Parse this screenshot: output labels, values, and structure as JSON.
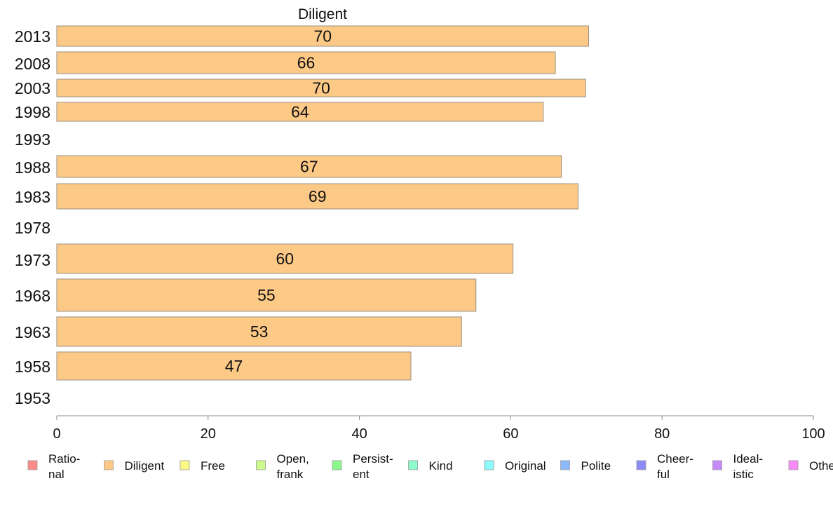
{
  "chart_data": {
    "type": "bar",
    "orientation": "horizontal",
    "title": "Diligent",
    "xlim": [
      0,
      100
    ],
    "xticks": [
      0,
      20,
      40,
      60,
      80,
      100
    ],
    "bar_color": "#fdc986",
    "bar_edge_color": "#9a8f80",
    "categories": [
      "2013",
      "2008",
      "2003",
      "1998",
      "1993",
      "1988",
      "1983",
      "1978",
      "1973",
      "1968",
      "1963",
      "1958",
      "1953"
    ],
    "values": [
      70.3,
      65.9,
      69.9,
      64.3,
      null,
      66.7,
      68.9,
      null,
      60.3,
      55.4,
      53.5,
      46.8,
      null
    ],
    "value_labels": [
      "70",
      "66",
      "70",
      "64",
      "",
      "67",
      "69",
      "",
      "60",
      "55",
      "53",
      "47",
      ""
    ],
    "legend": {
      "placement": "bottom",
      "items": [
        {
          "label": [
            "Ratio-",
            "nal"
          ],
          "color": "#ff8b8b"
        },
        {
          "label": [
            "Diligent"
          ],
          "color": "#fdc986"
        },
        {
          "label": [
            "Free"
          ],
          "color": "#fdfb86"
        },
        {
          "label": [
            "Open,",
            "frank"
          ],
          "color": "#cdfb8b"
        },
        {
          "label": [
            "Persist-",
            "ent"
          ],
          "color": "#8bf98b"
        },
        {
          "label": [
            "Kind"
          ],
          "color": "#8bfbc9"
        },
        {
          "label": [
            "Original"
          ],
          "color": "#8bfbfb"
        },
        {
          "label": [
            "Polite"
          ],
          "color": "#8bb9fb"
        },
        {
          "label": [
            "Cheer-",
            "ful"
          ],
          "color": "#8b8bf9"
        },
        {
          "label": [
            "Ideal-",
            "istic"
          ],
          "color": "#c58bf9"
        },
        {
          "label": [
            "Other"
          ],
          "color": "#f98bf9"
        }
      ]
    },
    "grid": false
  }
}
